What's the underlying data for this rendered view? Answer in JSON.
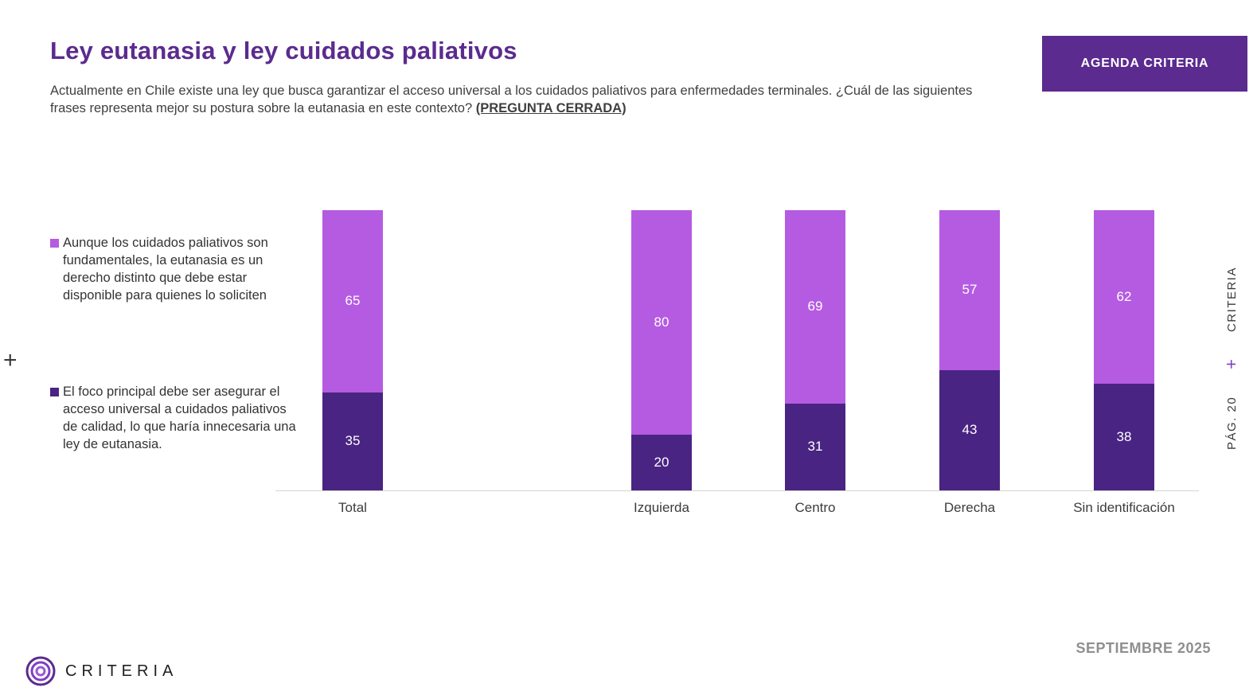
{
  "header": {
    "title": "Ley eutanasia y ley cuidados paliativos",
    "question": "Actualmente en Chile existe una ley que busca garantizar el acceso universal a los cuidados paliativos para enfermedades terminales. ¿Cuál de las siguientes frases representa mejor su postura sobre la eutanasia en este contexto? ",
    "question_tag": "(PREGUNTA CERRADA)",
    "button_label": "AGENDA CRITERIA"
  },
  "chart_data": {
    "type": "bar",
    "stacked": true,
    "categories": [
      "Total",
      "Izquierda",
      "Centro",
      "Derecha",
      "Sin identificación"
    ],
    "series": [
      {
        "name": "Aunque los cuidados paliativos son fundamentales, la eutanasia es un derecho distinto que debe estar disponible para quienes lo soliciten",
        "color": "#b55be2",
        "values": [
          65,
          80,
          69,
          57,
          62
        ]
      },
      {
        "name": "El foco principal debe ser asegurar el acceso universal a cuidados paliativos de calidad, lo que haría innecesaria una ley de eutanasia.",
        "color": "#4a2482",
        "values": [
          35,
          20,
          31,
          43,
          38
        ]
      }
    ],
    "ylim": [
      0,
      100
    ],
    "legend_position": "left",
    "value_labels": true
  },
  "side_rail": {
    "brand": "CRITERIA",
    "plus": "+",
    "page": "PÁG. 20"
  },
  "decorations": {
    "left_plus": "+"
  },
  "footer": {
    "logo_text": "CRITERIA",
    "date": "SEPTIEMBRE 2025"
  },
  "colors": {
    "accent_purple": "#5b2b8f",
    "bar_light": "#b55be2",
    "bar_dark": "#4a2482"
  }
}
